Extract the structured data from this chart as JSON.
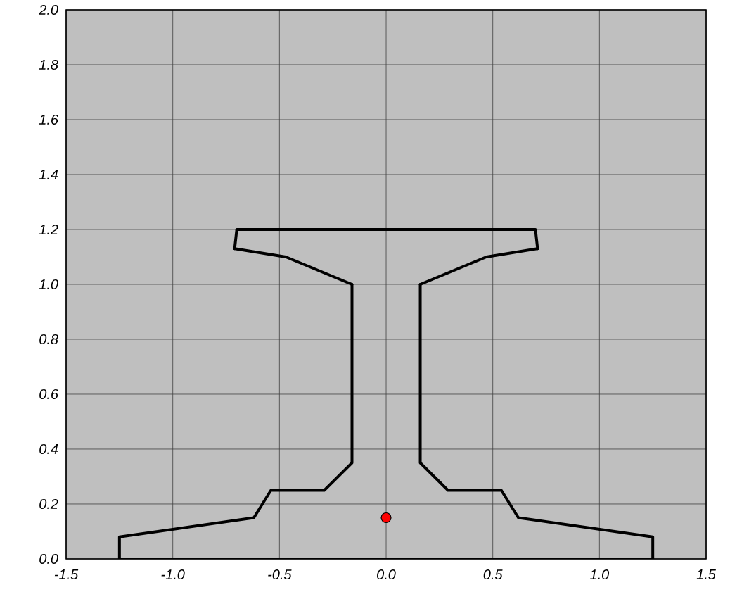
{
  "chart_data": {
    "type": "line",
    "xlim": [
      -1.5,
      1.5
    ],
    "ylim": [
      0,
      2
    ],
    "xticks": [
      {
        "value": -1.5,
        "label": "-1.5"
      },
      {
        "value": -1,
        "label": "-1.0"
      },
      {
        "value": -0.5,
        "label": "-0.5"
      },
      {
        "value": 0,
        "label": "0.0"
      },
      {
        "value": 0.5,
        "label": "0.5"
      },
      {
        "value": 1,
        "label": "1.0"
      },
      {
        "value": 1.5,
        "label": "1.5"
      }
    ],
    "yticks": [
      {
        "value": 0,
        "label": "0.0"
      },
      {
        "value": 0.2,
        "label": "0.2"
      },
      {
        "value": 0.4,
        "label": "0.4"
      },
      {
        "value": 0.6,
        "label": "0.6"
      },
      {
        "value": 0.8,
        "label": "0.8"
      },
      {
        "value": 1,
        "label": "1.0"
      },
      {
        "value": 1.2,
        "label": "1.2"
      },
      {
        "value": 1.4,
        "label": "1.4"
      },
      {
        "value": 1.6,
        "label": "1.6"
      },
      {
        "value": 1.8,
        "label": "1.8"
      },
      {
        "value": 2,
        "label": "2.0"
      }
    ],
    "grid": true,
    "series": [
      {
        "color": "#000000",
        "marker": "none",
        "line_style": "solid",
        "x": [
          -1.25,
          -1.25,
          -0.62,
          -0.54,
          -0.29,
          -0.16,
          -0.16
        ],
        "values": [
          0,
          0.08,
          0.15,
          0.25,
          0.25,
          0.35,
          1.0
        ]
      },
      {
        "color": "#000000",
        "marker": "none",
        "line_style": "solid",
        "x": [
          -0.71,
          -0.47,
          -0.16
        ],
        "values": [
          1.13,
          1.1,
          1.0
        ]
      },
      {
        "color": "#000000",
        "marker": "none",
        "line_style": "solid",
        "x": [
          -0.71,
          -0.7,
          0.7,
          0.71
        ],
        "values": [
          1.13,
          1.2,
          1.2,
          1.13
        ]
      },
      {
        "color": "#000000",
        "marker": "none",
        "line_style": "solid",
        "x": [
          0.16,
          0.47,
          0.71
        ],
        "values": [
          1.0,
          1.1,
          1.13
        ]
      },
      {
        "color": "#000000",
        "marker": "none",
        "line_style": "solid",
        "x": [
          0.16,
          0.16,
          0.29,
          0.54,
          0.62,
          1.25,
          1.25
        ],
        "values": [
          1.0,
          0.35,
          0.25,
          0.25,
          0.15,
          0.08,
          0
        ]
      },
      {
        "color": "#000000",
        "marker": "none",
        "line_style": "solid",
        "x": [
          -1.25,
          1.25
        ],
        "values": [
          0,
          0
        ]
      },
      {
        "type": "scatter",
        "color": "#ff0000",
        "marker": "circle",
        "x": [
          0
        ],
        "values": [
          0.15
        ]
      }
    ]
  }
}
